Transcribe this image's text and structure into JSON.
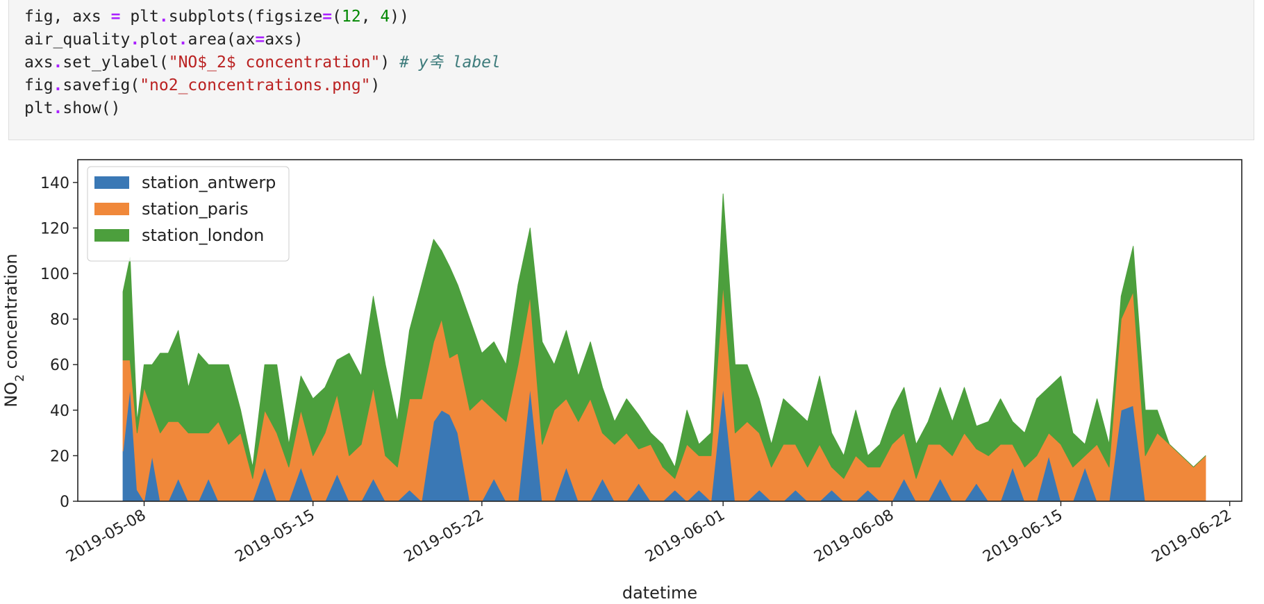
{
  "code": {
    "line1": {
      "a": "fig, axs ",
      "b": "=",
      "c": " plt",
      "d": ".",
      "e": "subplots(figsize",
      "f": "=",
      "g": "(",
      "h": "12",
      "i": ", ",
      "j": "4",
      "k": "))"
    },
    "line2": {
      "a": "air_quality",
      "b": ".",
      "c": "plot",
      "d": ".",
      "e": "area(ax",
      "f": "=",
      "g": "axs)"
    },
    "line3": {
      "a": "axs",
      "b": ".",
      "c": "set_ylabel(",
      "d": "\"NO$_2$ concentration\"",
      "e": ") ",
      "f": "# y축 label"
    },
    "line4": {
      "a": "fig",
      "b": ".",
      "c": "savefig(",
      "d": "\"no2_concentrations.png\"",
      "e": ")"
    },
    "line5": {
      "a": "plt",
      "b": ".",
      "c": "show",
      "d": "()"
    }
  },
  "colors": {
    "antwerp": "#3a78b5",
    "paris": "#f0883a",
    "london": "#4c9f3d"
  },
  "chart_data": {
    "type": "area",
    "stacked": true,
    "ylabel_main": "NO",
    "ylabel_sub": "2",
    "ylabel_rest": " concentration",
    "xlabel": "datetime",
    "ylim": [
      0,
      150
    ],
    "yticks": [
      0,
      20,
      40,
      60,
      80,
      100,
      120,
      140
    ],
    "xlim": [
      "2019-05-05T06:00",
      "2019-06-22T12:00"
    ],
    "xticks": [
      "2019-05-08",
      "2019-05-15",
      "2019-05-22",
      "2019-06-01",
      "2019-06-08",
      "2019-06-15",
      "2019-06-22"
    ],
    "legend_position": "upper-left",
    "x": [
      "2019-05-07T03:00",
      "2019-05-07T10:00",
      "2019-05-07T17:00",
      "2019-05-08T00:00",
      "2019-05-08T08:00",
      "2019-05-08T16:00",
      "2019-05-09T00:00",
      "2019-05-09T10:00",
      "2019-05-09T20:00",
      "2019-05-10T06:00",
      "2019-05-10T16:00",
      "2019-05-11T02:00",
      "2019-05-11T12:00",
      "2019-05-12T00:00",
      "2019-05-12T12:00",
      "2019-05-13T00:00",
      "2019-05-13T12:00",
      "2019-05-14T00:00",
      "2019-05-14T12:00",
      "2019-05-15T00:00",
      "2019-05-15T12:00",
      "2019-05-16T00:00",
      "2019-05-16T12:00",
      "2019-05-17T00:00",
      "2019-05-17T12:00",
      "2019-05-18T00:00",
      "2019-05-18T12:00",
      "2019-05-19T00:00",
      "2019-05-19T12:00",
      "2019-05-20T00:00",
      "2019-05-20T08:00",
      "2019-05-20T16:00",
      "2019-05-21T00:00",
      "2019-05-21T12:00",
      "2019-05-22T00:00",
      "2019-05-22T12:00",
      "2019-05-23T00:00",
      "2019-05-23T12:00",
      "2019-05-24T00:00",
      "2019-05-24T12:00",
      "2019-05-25T00:00",
      "2019-05-25T12:00",
      "2019-05-26T00:00",
      "2019-05-26T12:00",
      "2019-05-27T00:00",
      "2019-05-27T12:00",
      "2019-05-28T00:00",
      "2019-05-28T12:00",
      "2019-05-29T00:00",
      "2019-05-29T12:00",
      "2019-05-30T00:00",
      "2019-05-30T12:00",
      "2019-05-31T00:00",
      "2019-05-31T12:00",
      "2019-06-01T00:00",
      "2019-06-01T12:00",
      "2019-06-02T00:00",
      "2019-06-02T12:00",
      "2019-06-03T00:00",
      "2019-06-03T12:00",
      "2019-06-04T00:00",
      "2019-06-04T12:00",
      "2019-06-05T00:00",
      "2019-06-05T12:00",
      "2019-06-06T00:00",
      "2019-06-06T12:00",
      "2019-06-07T00:00",
      "2019-06-07T12:00",
      "2019-06-08T00:00",
      "2019-06-08T12:00",
      "2019-06-09T00:00",
      "2019-06-09T12:00",
      "2019-06-10T00:00",
      "2019-06-10T12:00",
      "2019-06-11T00:00",
      "2019-06-11T12:00",
      "2019-06-12T00:00",
      "2019-06-12T12:00",
      "2019-06-13T00:00",
      "2019-06-13T12:00",
      "2019-06-14T00:00",
      "2019-06-14T12:00",
      "2019-06-15T00:00",
      "2019-06-15T12:00",
      "2019-06-16T00:00",
      "2019-06-16T12:00",
      "2019-06-17T00:00",
      "2019-06-17T12:00",
      "2019-06-18T00:00",
      "2019-06-18T12:00",
      "2019-06-19T00:00",
      "2019-06-19T12:00",
      "2019-06-20T00:00",
      "2019-06-20T12:00",
      "2019-06-21T00:00"
    ],
    "series": [
      {
        "name": "station_antwerp",
        "values": [
          22,
          50,
          5,
          0,
          20,
          0,
          0,
          10,
          0,
          0,
          10,
          0,
          0,
          0,
          0,
          15,
          0,
          0,
          15,
          0,
          0,
          12,
          0,
          0,
          10,
          0,
          0,
          5,
          0,
          35,
          40,
          38,
          30,
          0,
          0,
          10,
          0,
          0,
          50,
          0,
          0,
          15,
          0,
          0,
          10,
          0,
          0,
          8,
          0,
          0,
          5,
          0,
          5,
          0,
          50,
          0,
          0,
          5,
          0,
          0,
          5,
          0,
          0,
          5,
          0,
          0,
          5,
          0,
          0,
          10,
          0,
          0,
          10,
          0,
          0,
          8,
          0,
          0,
          15,
          0,
          0,
          20,
          0,
          0,
          15,
          0,
          0,
          40,
          42,
          0,
          0,
          0,
          0,
          0,
          0
        ]
      },
      {
        "name": "station_paris",
        "values": [
          40,
          12,
          25,
          50,
          20,
          30,
          35,
          25,
          30,
          30,
          20,
          35,
          25,
          30,
          10,
          25,
          30,
          15,
          25,
          20,
          30,
          35,
          20,
          25,
          40,
          20,
          15,
          40,
          45,
          35,
          40,
          25,
          35,
          40,
          45,
          30,
          35,
          60,
          40,
          25,
          40,
          30,
          35,
          45,
          20,
          25,
          30,
          15,
          25,
          15,
          5,
          25,
          15,
          20,
          45,
          30,
          35,
          25,
          15,
          25,
          20,
          15,
          25,
          10,
          10,
          20,
          10,
          15,
          25,
          20,
          10,
          25,
          15,
          20,
          30,
          15,
          20,
          25,
          10,
          15,
          20,
          10,
          25,
          15,
          5,
          25,
          15,
          40,
          50,
          20,
          30,
          25,
          20,
          15,
          20
        ]
      },
      {
        "name": "station_london",
        "values": [
          30,
          45,
          5,
          10,
          20,
          35,
          30,
          40,
          20,
          35,
          30,
          25,
          35,
          10,
          5,
          20,
          30,
          10,
          15,
          25,
          20,
          15,
          45,
          30,
          40,
          40,
          20,
          30,
          50,
          45,
          30,
          40,
          30,
          40,
          20,
          30,
          25,
          35,
          30,
          45,
          20,
          30,
          20,
          25,
          20,
          10,
          15,
          15,
          5,
          10,
          5,
          15,
          5,
          10,
          40,
          30,
          25,
          15,
          10,
          20,
          15,
          20,
          30,
          15,
          10,
          20,
          5,
          10,
          15,
          20,
          15,
          10,
          25,
          15,
          20,
          10,
          15,
          20,
          10,
          15,
          25,
          20,
          30,
          15,
          5,
          20,
          10,
          10,
          20,
          20,
          10,
          0,
          0,
          0,
          0
        ]
      }
    ]
  }
}
